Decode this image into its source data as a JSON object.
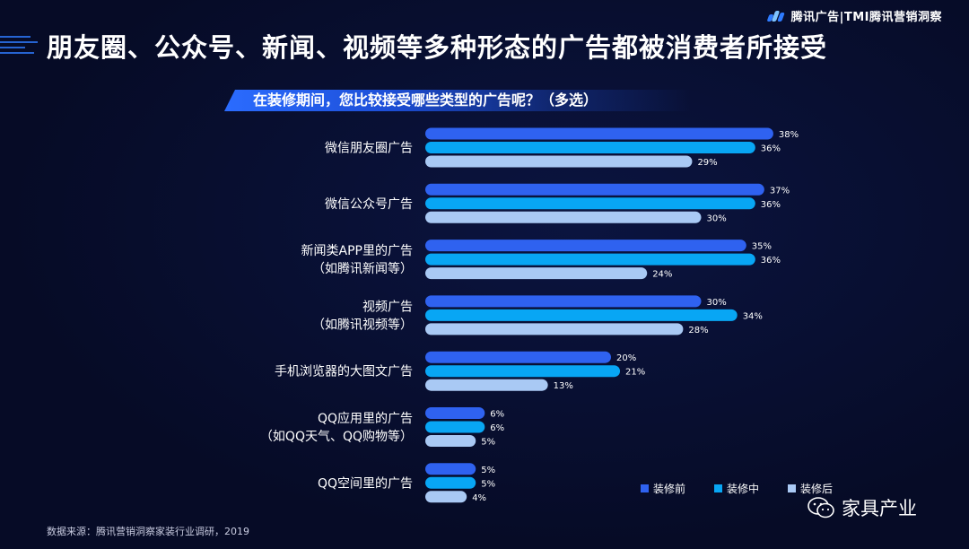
{
  "header": {
    "brand_text": "腾讯广告|TMI腾讯营销洞察",
    "title": "朋友圈、公众号、新闻、视频等多种形态的广告都被消费者所接受",
    "question": "在装修期间，您比较接受哪些类型的广告呢？（多选）"
  },
  "footer": {
    "source": "数据来源：腾讯营销洞察家装行业调研，2019",
    "watermark": "家具产业"
  },
  "colors": {
    "background": "#060b26",
    "series_before": "#2f62f0",
    "series_during": "#08a6f4",
    "series_after": "#a9c9f4",
    "brand_blue": "#2e7bff"
  },
  "chart_data": {
    "type": "bar",
    "orientation": "horizontal",
    "unit": "%",
    "categories": [
      [
        "微信朋友圈广告"
      ],
      [
        "微信公众号广告"
      ],
      [
        "新闻类APP里的广告",
        "（如腾讯新闻等）"
      ],
      [
        "视频广告",
        "（如腾讯视频等）"
      ],
      [
        "手机浏览器的大图文广告"
      ],
      [
        "QQ应用里的广告",
        "（如QQ天气、QQ购物等）"
      ],
      [
        "QQ空间里的广告"
      ]
    ],
    "series": [
      {
        "name": "装修前",
        "color": "#2f62f0",
        "values": [
          38,
          37,
          35,
          30,
          20,
          6,
          5
        ]
      },
      {
        "name": "装修中",
        "color": "#08a6f4",
        "values": [
          36,
          36,
          36,
          34,
          21,
          6,
          5
        ]
      },
      {
        "name": "装修后",
        "color": "#a9c9f4",
        "values": [
          29,
          30,
          24,
          28,
          13,
          5,
          4
        ]
      }
    ],
    "xlim": [
      0,
      40
    ],
    "grid": false,
    "legend_position": "bottom-right"
  }
}
